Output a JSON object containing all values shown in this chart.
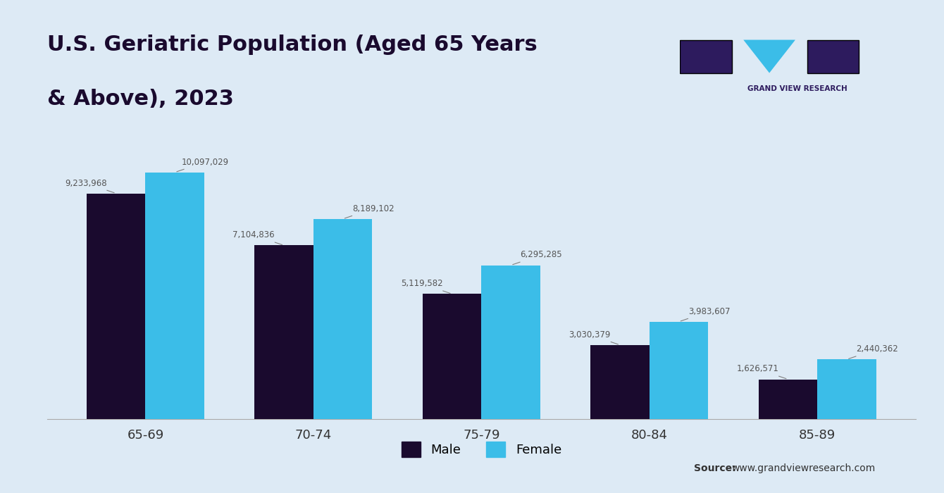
{
  "title_line1": "U.S. Geriatric Population (Aged 65 Years",
  "title_line2": "& Above), 2023",
  "categories": [
    "65-69",
    "70-74",
    "75-79",
    "80-84",
    "85-89"
  ],
  "male_values": [
    9233968,
    7104836,
    5119582,
    3030379,
    1626571
  ],
  "female_values": [
    10097029,
    8189102,
    6295285,
    3983607,
    2440362
  ],
  "male_color": "#1a0a2e",
  "female_color": "#3bbde8",
  "background_color": "#ddeaf5",
  "title_color": "#1a0a2e",
  "label_color": "#555555",
  "source_text": "Source: www.grandviewresearch.com",
  "legend_male": "Male",
  "legend_female": "Female",
  "bar_width": 0.35,
  "ylim": [
    0,
    11500000
  ]
}
